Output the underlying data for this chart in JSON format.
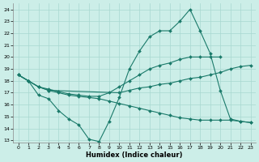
{
  "xlabel": "Humidex (Indice chaleur)",
  "bg_color": "#cceee8",
  "line_color": "#1a7a6a",
  "xlim": [
    -0.5,
    23.5
  ],
  "ylim": [
    12.8,
    24.5
  ],
  "yticks": [
    13,
    14,
    15,
    16,
    17,
    18,
    19,
    20,
    21,
    22,
    23,
    24
  ],
  "xticks": [
    0,
    1,
    2,
    3,
    4,
    5,
    6,
    7,
    8,
    9,
    10,
    11,
    12,
    13,
    14,
    15,
    16,
    17,
    18,
    19,
    20,
    21,
    22,
    23
  ],
  "line1_x": [
    0,
    1,
    2,
    3,
    4,
    5,
    6,
    7,
    8,
    9,
    10,
    11,
    12,
    13,
    14,
    15,
    16,
    17,
    18,
    19,
    20,
    21,
    22,
    23
  ],
  "line1_y": [
    18.5,
    18.0,
    16.8,
    16.5,
    15.5,
    14.8,
    14.3,
    13.1,
    12.9,
    14.6,
    16.6,
    19.0,
    20.5,
    21.7,
    22.2,
    22.2,
    23.0,
    24.0,
    22.2,
    20.3,
    17.2,
    14.8,
    14.6,
    14.5
  ],
  "line2_x": [
    0,
    1,
    2,
    3,
    4,
    5,
    6,
    7,
    8,
    9,
    10,
    11,
    12,
    13,
    14,
    15,
    16,
    17,
    18,
    19,
    20
  ],
  "line2_y": [
    18.5,
    18.0,
    17.5,
    17.3,
    17.1,
    16.9,
    16.8,
    16.7,
    16.7,
    17.0,
    17.5,
    18.0,
    18.5,
    19.0,
    19.3,
    19.5,
    19.8,
    20.0,
    20.0,
    20.0,
    20.0
  ],
  "line3_x": [
    0,
    1,
    2,
    3,
    10,
    11,
    12,
    13,
    14,
    15,
    16,
    17,
    18,
    19,
    20,
    21,
    22,
    23
  ],
  "line3_y": [
    18.5,
    18.0,
    17.5,
    17.2,
    17.0,
    17.2,
    17.4,
    17.5,
    17.7,
    17.8,
    18.0,
    18.2,
    18.3,
    18.5,
    18.7,
    19.0,
    19.2,
    19.3
  ],
  "line4_x": [
    0,
    1,
    2,
    3,
    4,
    5,
    6,
    7,
    8,
    9,
    10,
    11,
    12,
    13,
    14,
    15,
    16,
    17,
    18,
    19,
    20,
    21,
    22,
    23
  ],
  "line4_y": [
    18.5,
    18.0,
    17.5,
    17.2,
    17.0,
    16.8,
    16.7,
    16.6,
    16.5,
    16.3,
    16.1,
    15.9,
    15.7,
    15.5,
    15.3,
    15.1,
    14.9,
    14.8,
    14.7,
    14.7,
    14.7,
    14.7,
    14.6,
    14.5
  ],
  "grid_color": "#a8d8d0",
  "linewidth": 0.8,
  "markersize": 2.0
}
